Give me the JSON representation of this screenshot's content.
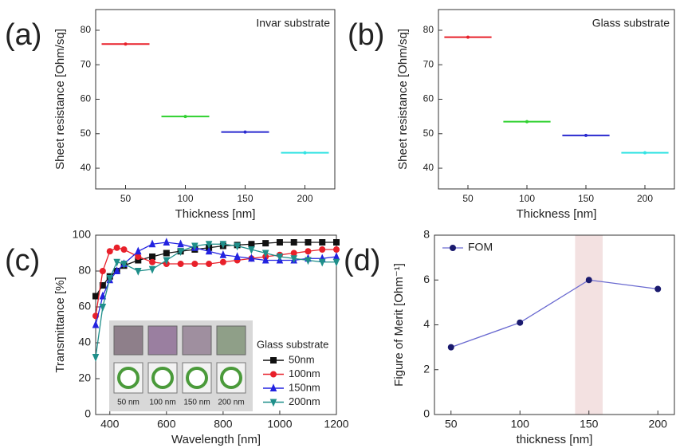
{
  "chart_data": [
    {
      "type": "errorbar",
      "panel_label": "(a)",
      "annotation": "Invar substrate",
      "x_label": "Thickness [nm]",
      "y_label": "Sheet resistance [Ohm/sq]",
      "x": [
        50,
        100,
        150,
        200
      ],
      "values": [
        76,
        55,
        50.5,
        44.5
      ],
      "xerr": [
        20,
        20,
        20,
        20
      ],
      "colors": [
        "#e8202a",
        "#2fd12f",
        "#2a2acf",
        "#33e3e3"
      ],
      "xlim": [
        25,
        225
      ],
      "ylim": [
        34,
        86
      ],
      "xticks": [
        50,
        100,
        150,
        200
      ],
      "yticks": [
        40,
        50,
        60,
        70,
        80
      ]
    },
    {
      "type": "errorbar",
      "panel_label": "(b)",
      "annotation": "Glass substrate",
      "x_label": "Thickness [nm]",
      "y_label": "Sheet resistance [Ohm/sq]",
      "x": [
        50,
        100,
        150,
        200
      ],
      "values": [
        78,
        53.5,
        49.5,
        44.5
      ],
      "xerr": [
        20,
        20,
        20,
        20
      ],
      "colors": [
        "#e8202a",
        "#2fd12f",
        "#2a2acf",
        "#33e3e3"
      ],
      "xlim": [
        25,
        225
      ],
      "ylim": [
        34,
        86
      ],
      "xticks": [
        50,
        100,
        150,
        200
      ],
      "yticks": [
        40,
        50,
        60,
        70,
        80
      ]
    },
    {
      "type": "line",
      "panel_label": "(c)",
      "x_label": "Wavelength [nm]",
      "y_label": "Transmittance [%]",
      "legend_title": "Glass substrate",
      "inset_labels": [
        "50 nm",
        "100 nm",
        "150 nm",
        "200 nm"
      ],
      "x": [
        350,
        375,
        400,
        425,
        450,
        500,
        550,
        600,
        650,
        700,
        750,
        800,
        850,
        900,
        950,
        1000,
        1050,
        1100,
        1150,
        1200
      ],
      "series": [
        {
          "name": "50nm",
          "color": "#111111",
          "marker": "square",
          "values": [
            66,
            72,
            77,
            80,
            83,
            86,
            88,
            90,
            91,
            92,
            93,
            94,
            94.5,
            95,
            95.5,
            96,
            96,
            96,
            96,
            96
          ]
        },
        {
          "name": "100nm",
          "color": "#e8202a",
          "marker": "circle",
          "values": [
            55,
            80,
            91,
            93,
            92,
            88,
            85,
            84,
            84,
            84,
            84,
            85,
            86,
            87,
            88,
            89,
            90,
            91,
            92,
            92
          ]
        },
        {
          "name": "150nm",
          "color": "#2323e0",
          "marker": "triangle",
          "values": [
            50,
            66,
            75,
            80,
            84,
            91,
            95,
            96,
            95,
            93,
            91,
            89,
            88,
            87,
            86,
            86,
            86,
            87,
            87,
            88
          ]
        },
        {
          "name": "200nm",
          "color": "#1f8f8a",
          "marker": "triangle-down",
          "values": [
            32,
            60,
            76,
            85,
            84,
            80,
            81,
            86,
            91,
            94,
            95,
            95,
            94,
            92,
            90,
            88,
            87,
            86,
            85,
            85
          ]
        }
      ],
      "xlim": [
        350,
        1200
      ],
      "ylim": [
        0,
        100
      ],
      "xticks": [
        400,
        600,
        800,
        1000,
        1200
      ],
      "yticks": [
        0,
        20,
        40,
        60,
        80,
        100
      ]
    },
    {
      "type": "line",
      "panel_label": "(d)",
      "x_label": "thickness [nm]",
      "y_label": "Figure of Merit [Ohm⁻¹]",
      "x": [
        50,
        100,
        150,
        200
      ],
      "series": [
        {
          "name": "FOM",
          "color": "#1a1a6e",
          "line_color": "#6a6ad0",
          "marker": "circle",
          "values": [
            3.0,
            4.1,
            6.0,
            5.6
          ]
        }
      ],
      "highlight": {
        "xrange": [
          140,
          160
        ],
        "color": "#f3e1e1"
      },
      "xlim": [
        38,
        212
      ],
      "ylim": [
        0,
        8
      ],
      "xticks": [
        50,
        100,
        150,
        200
      ],
      "yticks": [
        0,
        2,
        4,
        6,
        8
      ]
    }
  ]
}
